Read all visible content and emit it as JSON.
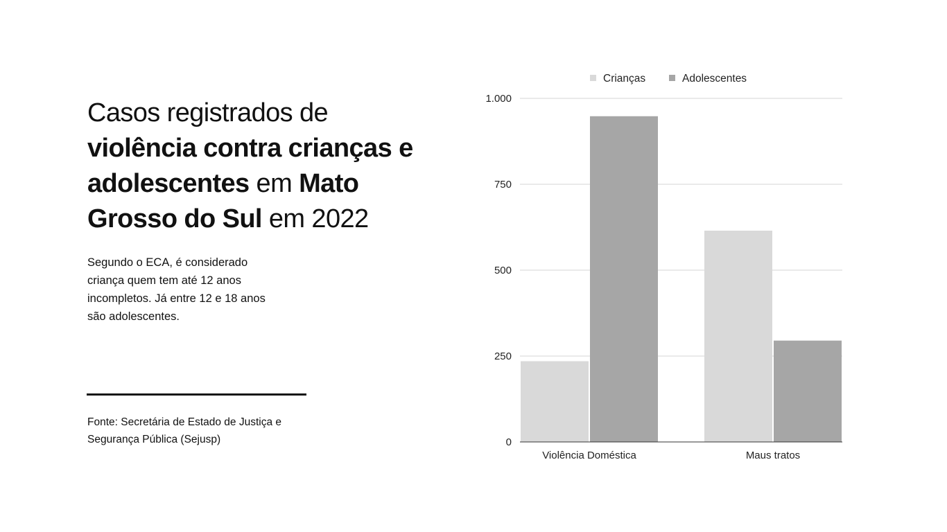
{
  "headline": {
    "line1": "Casos registrados de",
    "bold1": "violência contra crianças e adolescentes",
    "mid": " em ",
    "bold2": "Mato Grosso do Sul",
    "end": " em 2022"
  },
  "description": "Segundo o ECA, é considerado criança quem tem até 12 anos incompletos. Já entre 12 e 18 anos são adolescentes.",
  "source": "Fonte: Secretária de Estado de Justiça e Segurança Pública (Sejusp)",
  "colors": {
    "criancas": "#d9d9d9",
    "adolescentes": "#a6a6a6",
    "grid": "#d6d6d6",
    "axis": "#333333"
  },
  "chart_data": {
    "type": "bar",
    "categories": [
      "Violência Doméstica",
      "Maus tratos"
    ],
    "series": [
      {
        "name": "Crianças",
        "values": [
          235,
          615
        ]
      },
      {
        "name": "Adolescentes",
        "values": [
          948,
          295
        ]
      }
    ],
    "ylim": [
      0,
      1000
    ],
    "yticks": [
      0,
      250,
      500,
      750,
      1000
    ],
    "ytick_labels": [
      "0",
      "250",
      "500",
      "750",
      "1.000"
    ],
    "grid": true,
    "legend": "top-center",
    "title": "",
    "xlabel": "",
    "ylabel": ""
  }
}
